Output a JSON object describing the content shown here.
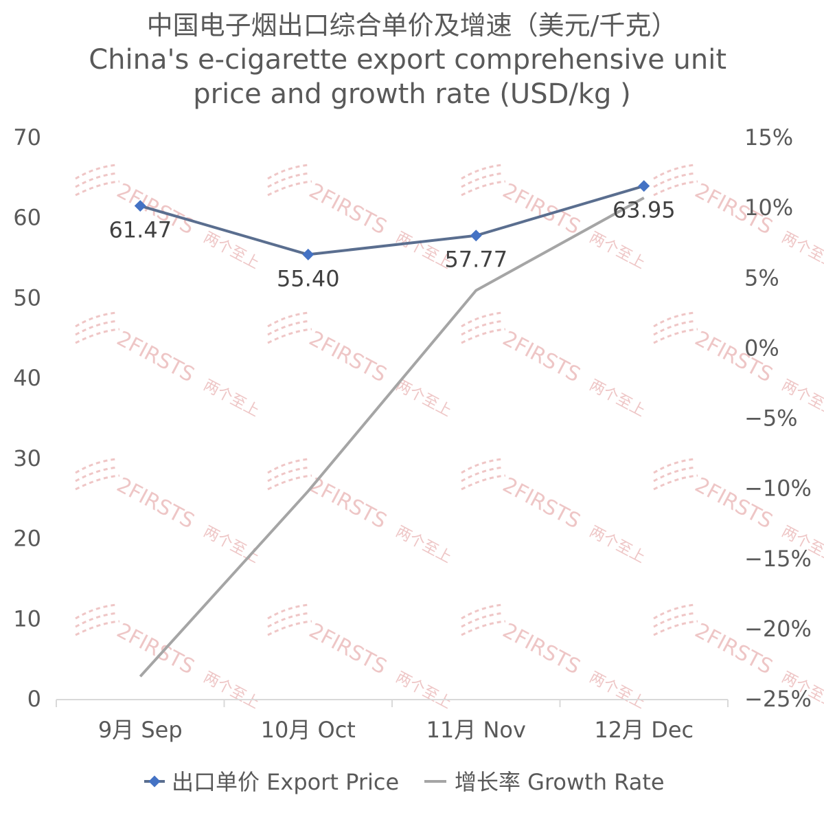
{
  "chart_data": {
    "type": "line",
    "title": "中国电子烟出口综合单价及增速（美元/千克）",
    "subtitle": "China's e-cigarette export comprehensive unit price and growth rate (USD/kg )",
    "categories": [
      "9月 Sep",
      "10月 Oct",
      "11月 Nov",
      "12月 Dec"
    ],
    "y_left": {
      "ylim": [
        0,
        70
      ],
      "ticks": [
        "0",
        "10",
        "20",
        "30",
        "40",
        "50",
        "60",
        "70"
      ]
    },
    "y_right": {
      "ylim": [
        -25,
        15
      ],
      "ticks": [
        "−25%",
        "−20%",
        "−15%",
        "−10%",
        "−5%",
        "0%",
        "5%",
        "10%",
        "15%"
      ]
    },
    "series": [
      {
        "name": "出口单价 Export Price",
        "axis": "left",
        "color": "#5a6e8f",
        "marker_color": "#4472c4",
        "values": [
          61.47,
          55.4,
          57.77,
          63.95
        ],
        "data_labels": [
          "61.47",
          "55.40",
          "57.77",
          "63.95"
        ]
      },
      {
        "name": "增长率 Growth Rate",
        "axis": "right",
        "color": "#a5a5a5",
        "values": [
          -23.4,
          -10.2,
          4.1,
          10.7
        ]
      }
    ],
    "legend_position": "bottom",
    "grid": false,
    "watermark": {
      "text": "2FIRSTS",
      "sub_text": "两个至上"
    }
  }
}
